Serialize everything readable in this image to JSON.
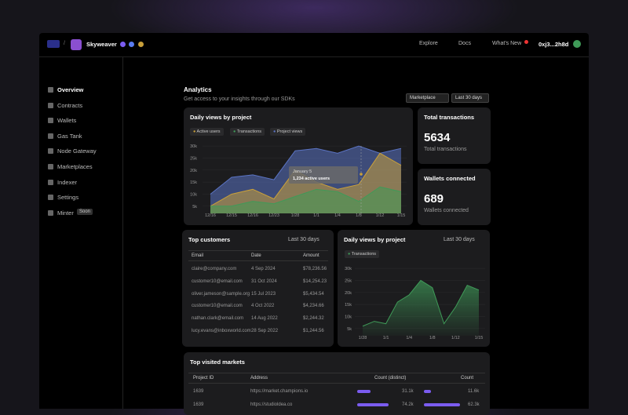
{
  "topbar": {
    "project": "Skyweaver",
    "links": [
      "Explore",
      "Docs",
      "What's New"
    ],
    "wallet": "0xj3...2h8d"
  },
  "sidebar": {
    "items": [
      "Overview",
      "Contracts",
      "Wallets",
      "Gas Tank",
      "Node Gateway",
      "Marketplaces",
      "Indexer",
      "Settings",
      "Minter"
    ],
    "badge": "Soon"
  },
  "header": {
    "title": "Analytics",
    "subtitle": "Get access to your insights through our SDKs",
    "filters": [
      "Marketplace",
      "Last 30 days"
    ]
  },
  "stats": [
    {
      "title": "Total transactions",
      "value": 5634,
      "caption": "Total transactions"
    },
    {
      "title": "Wallets connected",
      "value": 689,
      "caption": "Wallets connected"
    }
  ],
  "chart_data": [
    {
      "type": "area",
      "title": "Daily views by project",
      "categories": [
        "12/16",
        "12/15",
        "12/16",
        "12/23",
        "1/28",
        "1/1",
        "1/4",
        "1/8",
        "1/12",
        "1/15"
      ],
      "series": [
        {
          "name": "Project views",
          "color": "#5b74c4",
          "values": [
            10000,
            17000,
            18000,
            16000,
            28000,
            29000,
            27000,
            30000,
            27000,
            29000
          ]
        },
        {
          "name": "Transactions",
          "color": "#c9a03a",
          "values": [
            5000,
            10000,
            12000,
            8000,
            20000,
            15000,
            12000,
            14000,
            27000,
            22000
          ]
        },
        {
          "name": "Active users",
          "color": "#3f9a58",
          "values": [
            5000,
            5000,
            7000,
            6000,
            9000,
            12000,
            11000,
            7000,
            13000,
            11000
          ]
        }
      ],
      "legend": [
        "Active users",
        "Transactions",
        "Project views"
      ],
      "annotations": [
        "January 5",
        "1,234 active users"
      ],
      "ylim": [
        2000,
        32000
      ],
      "yticks": [
        {
          "value": 30000,
          "label": "30k"
        },
        {
          "value": 25000,
          "label": "25k"
        },
        {
          "value": 20000,
          "label": "20k"
        },
        {
          "value": 15000,
          "label": "15k"
        },
        {
          "value": 10000,
          "label": "10k"
        },
        {
          "value": 5000,
          "label": "5k"
        }
      ],
      "grid": true
    },
    {
      "type": "area",
      "title": "Daily views by project",
      "filter": "Last 30 days",
      "categories": [
        "1/28",
        null,
        "1/1",
        null,
        "1/4",
        null,
        "1/8",
        null,
        "1/12",
        null,
        "1/15"
      ],
      "series": [
        {
          "name": "Transactions",
          "color": "#3f9a58",
          "values": [
            6000,
            8000,
            7000,
            16000,
            19000,
            25000,
            22000,
            7000,
            14000,
            23000,
            21000
          ]
        }
      ],
      "ylim": [
        2000,
        32000
      ],
      "yticks": [
        {
          "value": 30000,
          "label": "30k"
        },
        {
          "value": 25000,
          "label": "25k"
        },
        {
          "value": 20000,
          "label": "20k"
        },
        {
          "value": 15000,
          "label": "15k"
        },
        {
          "value": 10000,
          "label": "10k"
        },
        {
          "value": 5000,
          "label": "5k"
        }
      ],
      "grid": true
    }
  ],
  "customers": {
    "title": "Top customers",
    "filter": "Last 30 days",
    "columns": [
      "Email",
      "Date",
      "Amount"
    ],
    "rows": [
      [
        "claire@company.com",
        "4 Sep 2024",
        "$78,236.56"
      ],
      [
        "customer10@email.com",
        "31 Oct 2024",
        "$14,254.23"
      ],
      [
        "oliver.jameson@sample.org",
        "15 Jul 2023",
        "$5,434.54"
      ],
      [
        "customer10@email.com",
        "4 Oct 2022",
        "$4,234.66"
      ],
      [
        "nathan.clark@email.com",
        "14 Aug 2022",
        "$2,244.32"
      ],
      [
        "lucy.evans@inboxworld.com",
        "28 Sep 2022",
        "$1,244.56"
      ]
    ]
  },
  "markets": {
    "title": "Top visited markets",
    "columns": [
      "Project ID",
      "Address",
      "Count (distinct)",
      "Count"
    ],
    "rows": [
      {
        "id": 1639,
        "address": "https://market.champions.io",
        "distinct": 31100,
        "distinct_label": "31.1k",
        "count": 11600,
        "count_label": "11.6k"
      },
      {
        "id": 1639,
        "address": "https://studioldea.co",
        "distinct": 74200,
        "distinct_label": "74.2k",
        "count": 62300,
        "count_label": "62.3k"
      }
    ]
  }
}
